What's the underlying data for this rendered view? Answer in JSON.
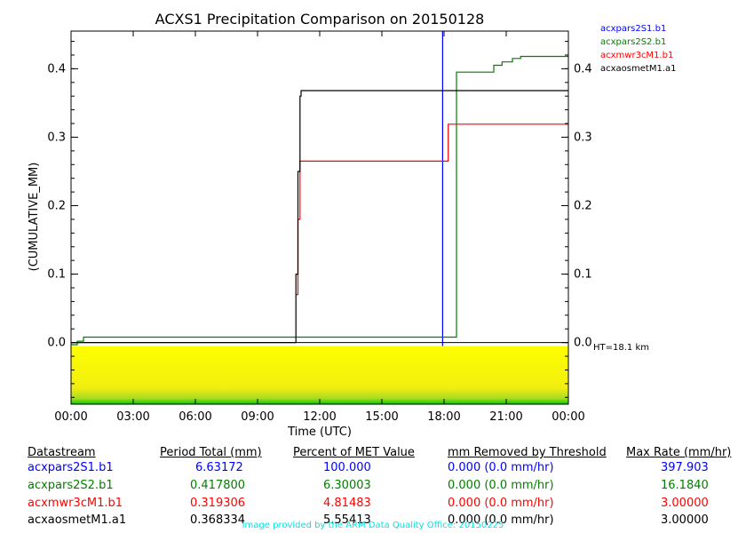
{
  "chart_data": {
    "type": "line",
    "title": "ACXS1 Precipitation Comparison on 20150128",
    "xlabel": "Time (UTC)",
    "ylabel": "(CUMULATIVE_MM)",
    "x_unit": "hours UTC",
    "xlim": [
      0,
      24
    ],
    "ylim": [
      -0.09,
      0.455
    ],
    "x_ticks": [
      "00:00",
      "03:00",
      "06:00",
      "09:00",
      "12:00",
      "15:00",
      "18:00",
      "21:00",
      "00:00"
    ],
    "y_ticks": [
      "0.0",
      "0.1",
      "0.2",
      "0.3",
      "0.4"
    ],
    "legend_position": "right",
    "annotation": "HT=18.1 km",
    "series": [
      {
        "name": "acxpars2S1.b1",
        "color": "#0000ff",
        "step": false,
        "points": [
          [
            17.93,
            0.455
          ],
          [
            17.93,
            -0.005
          ]
        ]
      },
      {
        "name": "acxpars2S2.b1",
        "color": "#008000",
        "step": true,
        "points": [
          [
            0,
            -0.003
          ],
          [
            0.3,
            0.002
          ],
          [
            0.6,
            0.008
          ],
          [
            18.5,
            0.008
          ],
          [
            18.6,
            0.395
          ],
          [
            20.2,
            0.395
          ],
          [
            20.4,
            0.405
          ],
          [
            20.8,
            0.41
          ],
          [
            21.3,
            0.415
          ],
          [
            21.7,
            0.418
          ],
          [
            24,
            0.418
          ]
        ]
      },
      {
        "name": "acxmwr3cM1.b1",
        "color": "#ff0000",
        "step": true,
        "points": [
          [
            10.83,
            0.07
          ],
          [
            10.95,
            0.18
          ],
          [
            11.05,
            0.265
          ],
          [
            18.0,
            0.265
          ],
          [
            18.2,
            0.319
          ],
          [
            24,
            0.319
          ]
        ]
      },
      {
        "name": "acxaosmetM1.a1",
        "color": "#000000",
        "step": true,
        "points": [
          [
            0,
            0.0
          ],
          [
            10.78,
            0.0
          ],
          [
            10.85,
            0.1
          ],
          [
            10.95,
            0.25
          ],
          [
            11.05,
            0.36
          ],
          [
            11.1,
            0.368
          ],
          [
            24,
            0.368
          ]
        ]
      }
    ],
    "strip": {
      "ylim": [
        -0.09,
        -0.005
      ],
      "colors": [
        "#ffff00",
        "#00cc00"
      ]
    }
  },
  "table": {
    "headers": [
      "Datastream",
      "Period Total (mm)",
      "Percent of MET Value",
      "mm Removed by Threshold",
      "Max Rate (mm/hr)"
    ],
    "rows": [
      {
        "name": "acxpars2S1.b1",
        "color": "#0000ff",
        "total": "6.63172",
        "percent": "100.000",
        "removed": "0.000 (0.0 mm/hr)",
        "max_rate": "397.903"
      },
      {
        "name": "acxpars2S2.b1",
        "color": "#008000",
        "total": "0.417800",
        "percent": "6.30003",
        "removed": "0.000 (0.0 mm/hr)",
        "max_rate": "16.1840"
      },
      {
        "name": "acxmwr3cM1.b1",
        "color": "#ff0000",
        "total": "0.319306",
        "percent": "4.81483",
        "removed": "0.000 (0.0 mm/hr)",
        "max_rate": "3.00000"
      },
      {
        "name": "acxaosmetM1.a1",
        "color": "#000000",
        "total": "0.368334",
        "percent": "5.55413",
        "removed": "0.000 (0.0 mm/hr)",
        "max_rate": "3.00000"
      }
    ]
  },
  "credit": "Image provided by the ARM Data Quality Office: 20150225"
}
